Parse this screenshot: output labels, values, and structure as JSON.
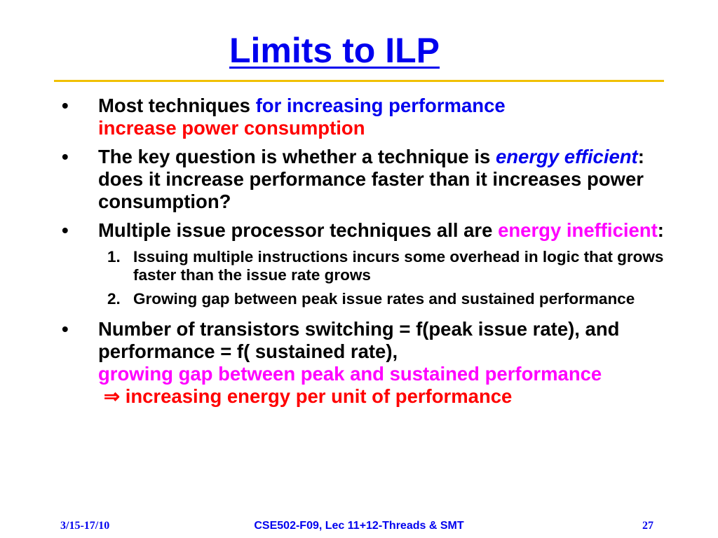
{
  "title": "Limits to ILP",
  "colors": {
    "title": "#0000ee",
    "rule": "#f0c000",
    "blue": "#0000ee",
    "red": "#ff0000",
    "magenta": "#ff00ff"
  },
  "bullet_symbol": "•",
  "arrow_symbol": "⇒",
  "bullets": [
    {
      "b1_a": "Most techniques ",
      "b1_b": "for increasing performance",
      "b1_c": "increase power consumption"
    },
    {
      "b2_a": "The key question is whether a technique is ",
      "b2_b": "energy efficient",
      "b2_c": ": does it increase performance faster than it increases power consumption?"
    },
    {
      "b3_a": "Multiple issue processor techniques all are ",
      "b3_b": "energy inefficient",
      "b3_c": ":"
    },
    {
      "b4_a": "Number of transistors switching = f(peak issue rate), and performance = f( sustained rate),",
      "b4_b": "growing gap between peak and sustained performance",
      "b4_c": "increasing energy per unit of performance"
    }
  ],
  "subitems": [
    {
      "num": "1.",
      "text": "Issuing multiple instructions incurs some overhead in logic that grows faster than the issue rate grows"
    },
    {
      "num": "2.",
      "text": "Growing gap between peak issue rates and sustained performance"
    }
  ],
  "footer": {
    "date": "3/15-17/10",
    "course": "CSE502-F09, Lec 11+12-Threads & SMT",
    "page": "27"
  }
}
